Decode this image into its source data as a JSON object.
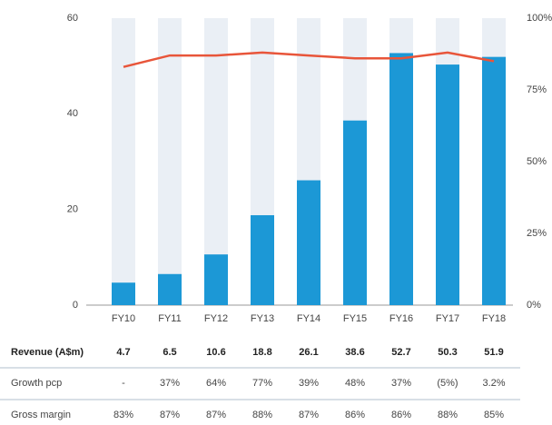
{
  "chart_data": {
    "type": "bar",
    "categories": [
      "FY10",
      "FY11",
      "FY12",
      "FY13",
      "FY14",
      "FY15",
      "FY16",
      "FY17",
      "FY18"
    ],
    "series": [
      {
        "name": "Revenue (A$m)",
        "type": "bar",
        "color": "#1c98d6",
        "values": [
          4.7,
          6.5,
          10.6,
          18.8,
          26.1,
          38.6,
          52.7,
          50.3,
          51.9
        ]
      },
      {
        "name": "Gross margin",
        "type": "line",
        "axis": "y2",
        "color": "#e8553a",
        "values": [
          83,
          87,
          87,
          88,
          87,
          86,
          86,
          88,
          85
        ],
        "value_labels": [
          "83%",
          "87%",
          "87%",
          "88%",
          "87%",
          "86%",
          "86%",
          "88%",
          "85%"
        ]
      }
    ],
    "growth": {
      "label": "Growth pcp",
      "values": [
        "-",
        "37%",
        "64%",
        "77%",
        "39%",
        "48%",
        "37%",
        "(5%)",
        "3.2%"
      ]
    },
    "ylim": [
      0,
      60
    ],
    "yticks": [
      0,
      20,
      40,
      60
    ],
    "y2lim": [
      0,
      100
    ],
    "y2ticks": [
      {
        "value": 0,
        "label": "0%"
      },
      {
        "value": 25,
        "label": "25%"
      },
      {
        "value": 50,
        "label": "50%"
      },
      {
        "value": 75,
        "label": "75%"
      },
      {
        "value": 100,
        "label": "100%"
      }
    ]
  }
}
